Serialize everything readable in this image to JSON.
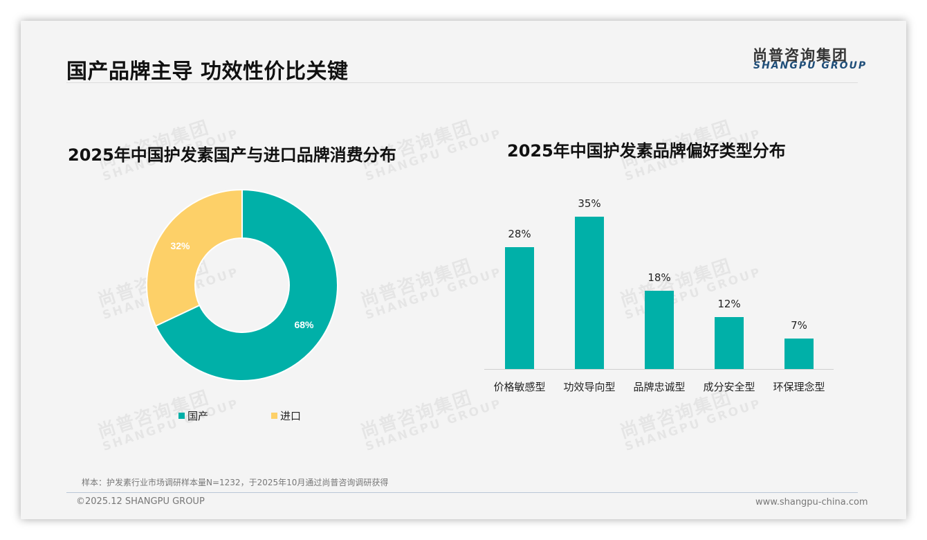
{
  "header": {
    "title": "国产品牌主导 功效性价比关键",
    "logo_cn": "尚普咨询集团",
    "logo_en": "SHANGPU GROUP"
  },
  "watermark": {
    "cn": "尚普咨询集团",
    "en": "SHANGPU GROUP"
  },
  "colors": {
    "teal": "#00b0a8",
    "yellow": "#fdd068",
    "background": "#f4f4f4"
  },
  "chart_data": [
    {
      "type": "pie",
      "title": "2025年中国护发素国产与进口品牌消费分布",
      "categories": [
        "国产",
        "进口"
      ],
      "values": [
        68,
        32
      ],
      "labels": [
        "68%",
        "32%"
      ],
      "colors": [
        "#00b0a8",
        "#fdd068"
      ],
      "donut": true,
      "legend_position": "bottom"
    },
    {
      "type": "bar",
      "title": "2025年中国护发素品牌偏好类型分布",
      "categories": [
        "价格敏感型",
        "功效导向型",
        "品牌忠诚型",
        "成分安全型",
        "环保理念型"
      ],
      "values": [
        28,
        35,
        18,
        12,
        7
      ],
      "labels": [
        "28%",
        "35%",
        "18%",
        "12%",
        "7%"
      ],
      "xlabel": "",
      "ylabel": "",
      "grid": false,
      "color": "#00b0a8"
    }
  ],
  "footer": {
    "note": "样本：护发素行业市场调研样本量N=1232，于2025年10月通过尚普咨询调研获得",
    "copyright": "©2025.12 SHANGPU GROUP",
    "website": "www.shangpu-china.com"
  }
}
